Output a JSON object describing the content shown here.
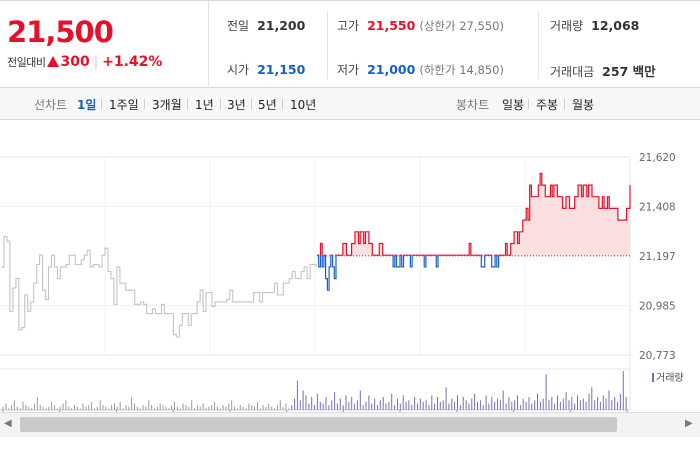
{
  "summary": {
    "current_price": "21,500",
    "change_label": "전일대비",
    "change_value": "300",
    "change_rate": "+1.42%",
    "colors": {
      "up": "#e5112b",
      "down": "#1560c8"
    },
    "stats": {
      "prev_close": {
        "label": "전일",
        "value": "21,200"
      },
      "open": {
        "label": "시가",
        "value": "21,150"
      },
      "high": {
        "label": "고가",
        "value": "21,550",
        "sub": "(상한가 27,550)"
      },
      "low": {
        "label": "저가",
        "value": "21,000",
        "sub": "(하한가 14,850)"
      },
      "volume": {
        "label": "거래량",
        "value": "12,068"
      },
      "trade_value": {
        "label": "거래대금",
        "value": "257 백만"
      }
    }
  },
  "toolbar": {
    "line_chart_label": "선차트",
    "line_periods": [
      "1일",
      "1주일",
      "3개월",
      "1년",
      "3년",
      "5년",
      "10년"
    ],
    "line_active": "1일",
    "candle_chart_label": "봉차트",
    "candle_periods": [
      "일봉",
      "주봉",
      "월봉"
    ]
  },
  "chart_data": {
    "type": "line",
    "title": "",
    "xlabel": "",
    "ylabel": "",
    "ylim": [
      20773,
      21620
    ],
    "yticks": [
      "21,620",
      "21,408",
      "21,197",
      "20,985",
      "20,773"
    ],
    "baseline": 21197,
    "grid": true,
    "series": [
      {
        "segment": "previous-session",
        "color": "#c4c4c4",
        "values": [
          21150,
          21280,
          21260,
          20960,
          21060,
          21100,
          20880,
          20890,
          21030,
          20960,
          21000,
          21080,
          21160,
          21200,
          21050,
          21010,
          21150,
          21200,
          21150,
          21100,
          21150,
          21150,
          21160,
          21200,
          21200,
          21160,
          21160,
          21180,
          21200,
          21220,
          21150,
          21160,
          21160,
          21150,
          21200,
          21230,
          21130,
          21100,
          20990,
          21150,
          21080,
          21080,
          21050,
          21050,
          21050,
          20990,
          20990,
          21000,
          20990,
          20950,
          20950,
          20970,
          20950,
          20950,
          20990,
          20950,
          20950,
          20950,
          20860,
          20850,
          20900,
          20950,
          20950,
          20900,
          20950,
          20950,
          21000,
          21050,
          20960,
          21040,
          21040,
          20980,
          21000,
          21000,
          21000,
          21000,
          21010,
          21050,
          21000,
          21000,
          21000,
          21000,
          21000,
          21000,
          21000,
          21040,
          21040,
          21000,
          21040,
          21040,
          21040,
          21040,
          21080,
          21030,
          21030,
          21080,
          21080,
          21100,
          21130,
          21100,
          21100,
          21130,
          21150,
          21100,
          21160,
          21160,
          21150
        ]
      },
      {
        "segment": "today",
        "color_above": "#e5112b",
        "color_below": "#1560c8",
        "values": [
          21200,
          21150,
          21250,
          21150,
          21200,
          21100,
          21050,
          21150,
          21200,
          21150,
          21100,
          21200,
          21200,
          21200,
          21200,
          21250,
          21250,
          21200,
          21200,
          21200,
          21250,
          21250,
          21300,
          21300,
          21250,
          21300,
          21300,
          21250,
          21300,
          21300,
          21250,
          21250,
          21200,
          21200,
          21200,
          21200,
          21250,
          21250,
          21200,
          21200,
          21200,
          21200,
          21200,
          21200,
          21150,
          21200,
          21150,
          21150,
          21200,
          21150,
          21200,
          21200,
          21200,
          21200,
          21150,
          21200,
          21200,
          21200,
          21200,
          21200,
          21200,
          21200,
          21150,
          21200,
          21200,
          21200,
          21200,
          21200,
          21200,
          21150,
          21200,
          21200,
          21200,
          21200,
          21200,
          21200,
          21200,
          21200,
          21200,
          21200,
          21200,
          21200,
          21200,
          21200,
          21200,
          21200,
          21200,
          21200,
          21250,
          21200,
          21200,
          21200,
          21200,
          21200,
          21200,
          21150,
          21150,
          21200,
          21200,
          21200,
          21200,
          21150,
          21150,
          21200,
          21150,
          21200,
          21200,
          21200,
          21200,
          21250,
          21200,
          21200,
          21250,
          21250,
          21300,
          21300,
          21250,
          21300,
          21300,
          21350,
          21350,
          21400,
          21350,
          21500,
          21450,
          21450,
          21450,
          21450,
          21500,
          21550,
          21500,
          21500,
          21450,
          21450,
          21450,
          21500,
          21450,
          21500,
          21500,
          21450,
          21450,
          21450,
          21400,
          21400,
          21450,
          21450,
          21400,
          21400,
          21400,
          21450,
          21450,
          21500,
          21500,
          21450,
          21500,
          21500,
          21450,
          21500,
          21500,
          21450,
          21450,
          21450,
          21450,
          21400,
          21400,
          21450,
          21400,
          21400,
          21450,
          21400,
          21400,
          21400,
          21400,
          21400,
          21350,
          21350,
          21350,
          21350,
          21350,
          21400,
          21400,
          21500
        ]
      }
    ],
    "volume_label": "거래량",
    "volume": [
      2,
      4,
      1,
      3,
      6,
      2,
      1,
      5,
      3,
      2,
      1,
      4,
      8,
      3,
      2,
      1,
      2,
      5,
      3,
      1,
      2,
      4,
      6,
      2,
      1,
      3,
      2,
      1,
      4,
      2,
      3,
      5,
      1,
      2,
      6,
      3,
      2,
      1,
      3,
      4,
      2,
      5,
      1,
      3,
      2,
      8,
      4,
      2,
      1,
      3,
      2,
      6,
      3,
      1,
      2,
      4,
      3,
      2,
      1,
      3,
      5,
      2,
      1,
      4,
      3,
      2,
      6,
      1,
      3,
      2,
      4,
      1,
      2,
      3,
      5,
      2,
      1,
      3,
      2,
      4,
      6,
      2,
      1,
      3,
      2,
      1,
      4,
      3,
      2,
      5,
      1,
      3,
      2,
      4,
      2,
      1,
      3,
      6,
      2,
      4,
      1,
      3,
      7,
      18,
      6,
      12,
      9,
      4,
      8,
      3,
      10,
      5,
      4,
      8,
      3,
      6,
      11,
      4,
      7,
      3,
      9,
      5,
      8,
      4,
      6,
      12,
      3,
      5,
      9,
      4,
      7,
      3,
      6,
      8,
      4,
      5,
      10,
      3,
      7,
      4,
      9,
      5,
      6,
      3,
      8,
      4,
      7,
      5,
      6,
      3,
      9,
      4,
      8,
      5,
      6,
      14,
      4,
      7,
      5,
      9,
      3,
      8,
      6,
      4,
      7,
      10,
      5,
      6,
      3,
      9,
      4,
      8,
      5,
      7,
      6,
      12,
      4,
      8,
      5,
      6,
      9,
      3,
      7,
      5,
      8,
      4,
      6,
      10,
      5,
      7,
      22,
      6,
      8,
      4,
      9,
      5,
      7,
      11,
      6,
      8,
      4,
      9,
      6,
      7,
      5,
      10,
      14,
      6,
      8,
      5,
      9,
      7,
      12,
      6,
      8,
      5,
      10,
      24,
      8
    ]
  }
}
